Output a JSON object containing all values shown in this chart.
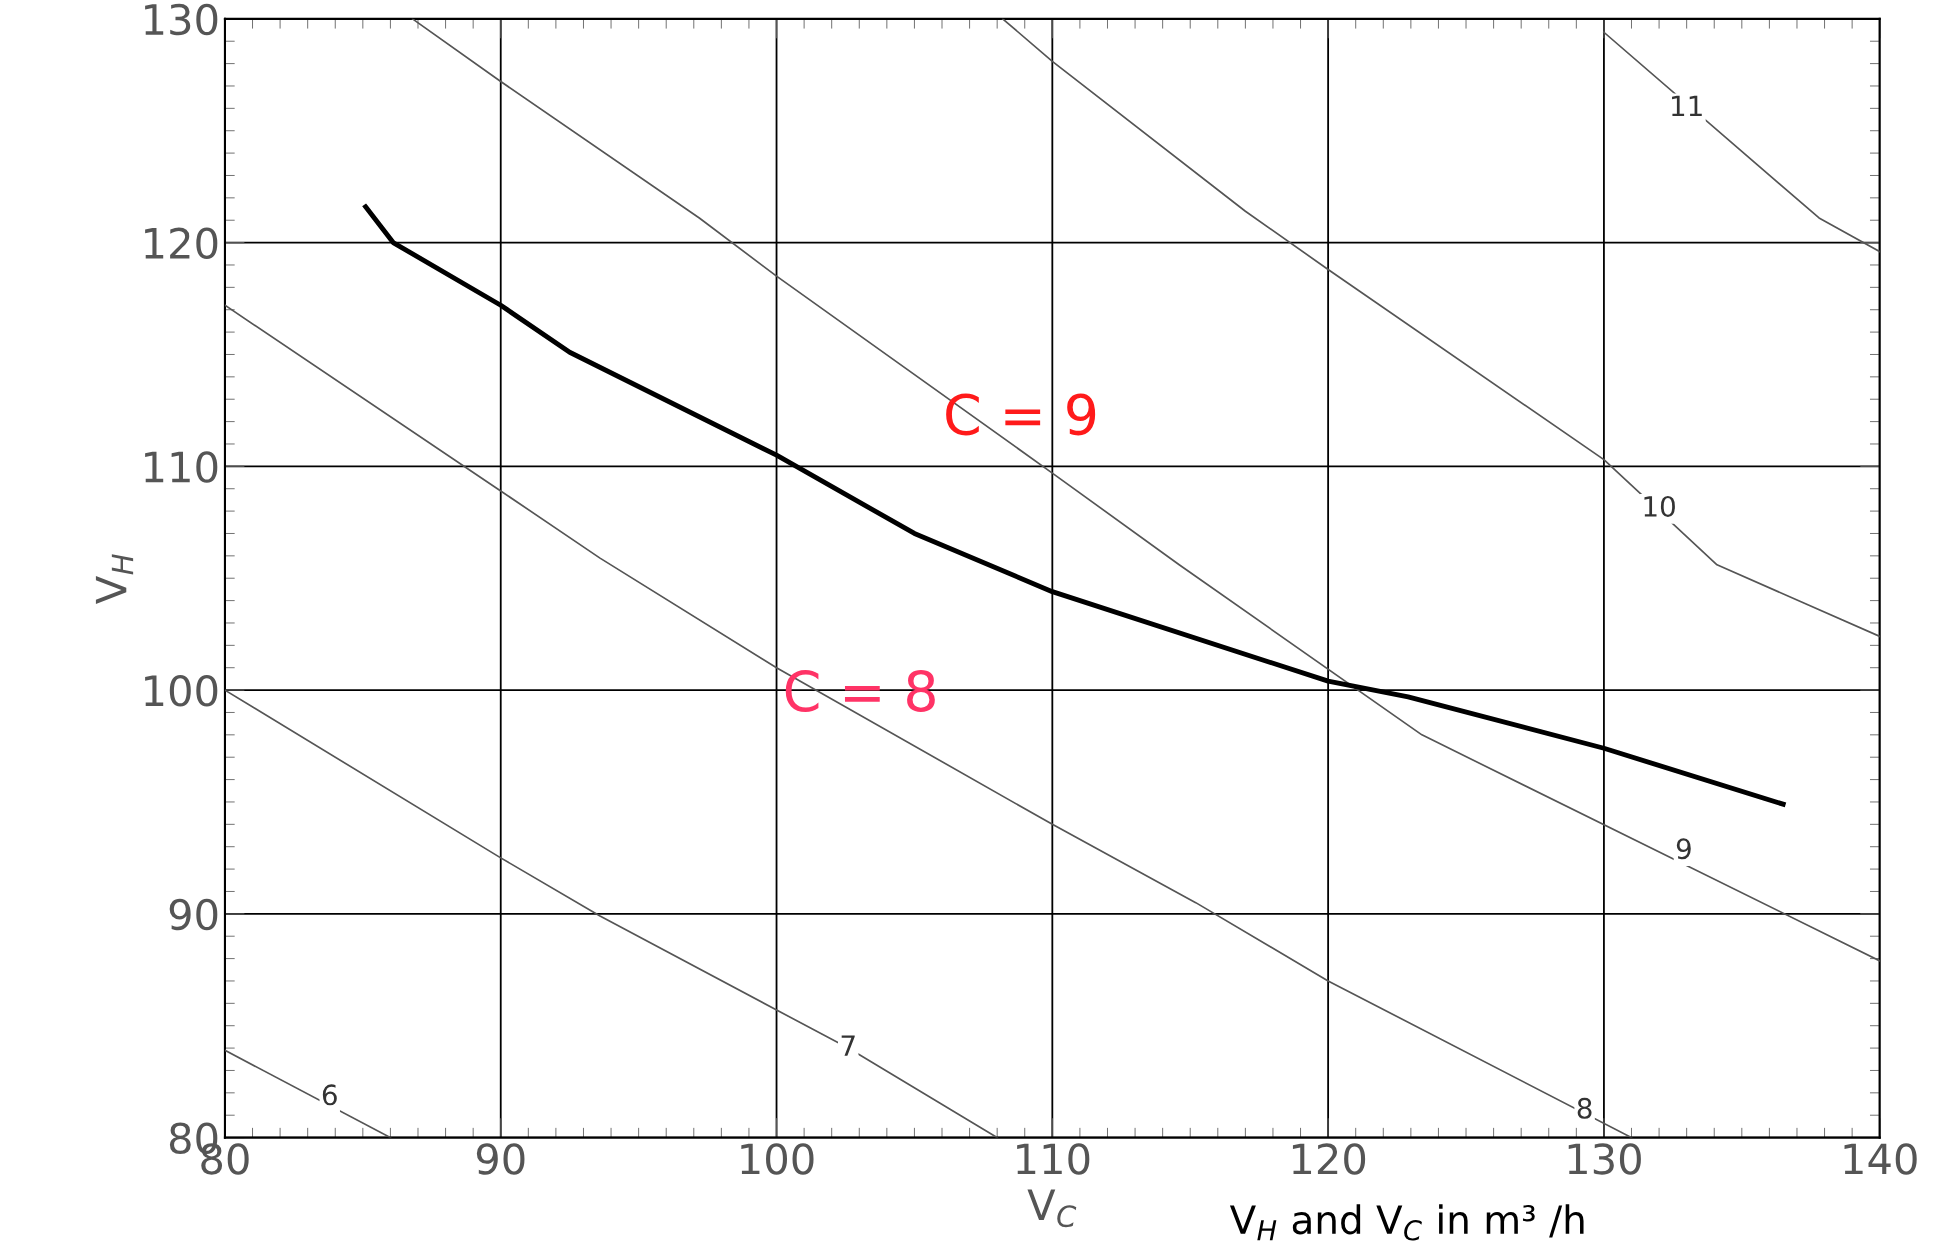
{
  "chart_data": {
    "type": "line",
    "xlabel": "V$_{C}$",
    "ylabel": "V$_{H}$",
    "xlim": [
      80,
      140
    ],
    "ylim": [
      80,
      130
    ],
    "xticks": [
      80,
      90,
      100,
      110,
      120,
      130,
      140
    ],
    "yticks": [
      80,
      90,
      100,
      110,
      120,
      130
    ],
    "grid": true,
    "marker": "none",
    "line_style": "solid",
    "series": [
      {
        "color": "#555555",
        "x": [
          80,
          86.0
        ],
        "values": [
          83.9,
          80
        ]
      },
      {
        "color": "#555555",
        "x": [
          80,
          90,
          93.6,
          102.6,
          108.0
        ],
        "values": [
          100,
          92.5,
          89.9,
          84,
          80
        ]
      },
      {
        "color": "#555555",
        "x": [
          80,
          90,
          93.6,
          100,
          110,
          115.2,
          120,
          131
        ],
        "values": [
          117.2,
          108.9,
          105.9,
          101,
          94,
          90.5,
          87,
          80
        ]
      },
      {
        "color": "#555555",
        "x": [
          86.8,
          90,
          97.2,
          100,
          110,
          114.6,
          123.4,
          140
        ],
        "values": [
          130,
          127.2,
          121.1,
          118.5,
          109.7,
          105.6,
          98,
          87.9
        ]
      },
      {
        "color": "#555555",
        "x": [
          108.2,
          110,
          117,
          120,
          130,
          134.1,
          140
        ],
        "values": [
          130,
          128.1,
          121.4,
          118.8,
          110.3,
          105.6,
          102.4
        ]
      },
      {
        "color": "#555555",
        "x": [
          130,
          137.8,
          140
        ],
        "values": [
          129.4,
          121.1,
          119.6
        ]
      },
      {
        "color": "#000000",
        "x": [
          85.1,
          86.1,
          90,
          92.5,
          100,
          105,
          110,
          120,
          122.9,
          130,
          136.5
        ],
        "values": [
          121.6,
          120,
          117.2,
          115.1,
          110.5,
          107,
          104.4,
          100.4,
          99.7,
          97.4,
          94.9
        ]
      }
    ],
    "annotations": [
      {
        "text": "6",
        "x": 83.8,
        "y": 81.8
      },
      {
        "text": "7",
        "x": 102.6,
        "y": 84
      },
      {
        "text": "8",
        "x": 129.3,
        "y": 81.2
      },
      {
        "text": "9",
        "x": 132.9,
        "y": 92.8
      },
      {
        "text": "10",
        "x": 132.0,
        "y": 108.1
      },
      {
        "text": "11",
        "x": 133.0,
        "y": 126.0
      },
      "C = 9",
      "C = 8",
      "V$_{H}$ and V$_{C}$ in m³ /h"
    ]
  }
}
